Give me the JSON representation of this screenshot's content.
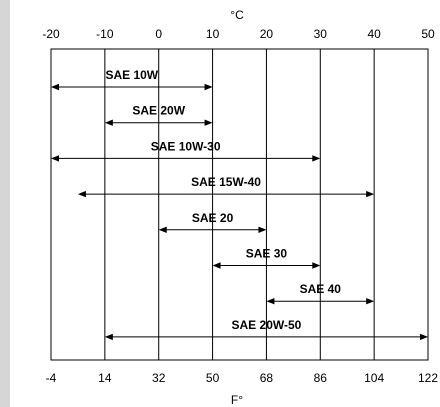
{
  "chart_data": {
    "type": "range",
    "title": "",
    "top_axis": {
      "unit": "°C",
      "ticks": [
        -20,
        -10,
        0,
        10,
        20,
        30,
        40,
        50
      ]
    },
    "bottom_axis": {
      "unit": "F°",
      "ticks": [
        -4,
        14,
        32,
        50,
        68,
        86,
        104,
        122
      ]
    },
    "xlim_c": [
      -20,
      50
    ],
    "grid": true,
    "ranges": [
      {
        "name": "SAE 10W",
        "from_c": -20,
        "to_c": 10
      },
      {
        "name": "SAE 20W",
        "from_c": -10,
        "to_c": 10
      },
      {
        "name": "SAE 10W-30",
        "from_c": -20,
        "to_c": 30
      },
      {
        "name": "SAE 15W-40",
        "from_c": -15,
        "to_c": 40
      },
      {
        "name": "SAE 20",
        "from_c": 0,
        "to_c": 20
      },
      {
        "name": "SAE 30",
        "from_c": 10,
        "to_c": 30
      },
      {
        "name": "SAE 40",
        "from_c": 20,
        "to_c": 40
      },
      {
        "name": "SAE 20W-50",
        "from_c": -10,
        "to_c": 50
      }
    ],
    "colors": {
      "line": "#000000",
      "background": "#ffffff",
      "border": "#d6d6d6"
    }
  }
}
